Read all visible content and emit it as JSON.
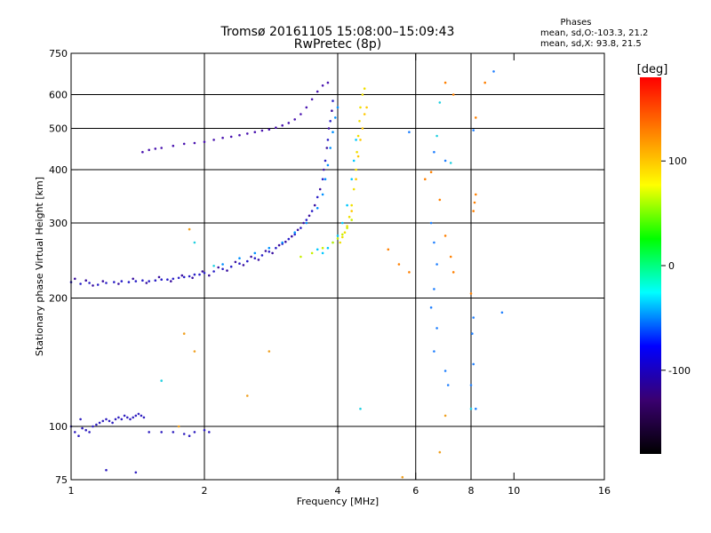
{
  "chart_data": {
    "type": "scatter",
    "title": "Tromsø 20161105 15:08:00–15:09:43",
    "subtitle": "RwPretec (8p)",
    "xlabel": "Frequency [MHz]",
    "ylabel": "Stationary phase Virtual Height [km]",
    "x_scale": "log",
    "y_scale": "log",
    "xlim": [
      1,
      16
    ],
    "ylim": [
      75,
      750
    ],
    "x_ticks": [
      1,
      2,
      4,
      6,
      8,
      10,
      16
    ],
    "y_ticks": [
      75,
      100,
      200,
      300,
      400,
      500,
      600,
      750
    ],
    "x_gridlines": [
      2,
      4,
      6,
      8
    ],
    "y_gridlines": [
      100,
      200,
      300,
      400,
      500,
      600
    ],
    "grid": true,
    "legend": {
      "heading": "Phases",
      "lines": [
        "mean, sd,O:-103.3, 21.2",
        "mean, sd,X:  93.8, 21.5"
      ]
    },
    "colorbar": {
      "label": "[deg]",
      "range": [
        -180,
        180
      ],
      "ticks": [
        100,
        0,
        -100
      ],
      "colors": [
        "#000000",
        "#3a0070",
        "#0000ff",
        "#00ffff",
        "#00ff00",
        "#ffff00",
        "#ff8000",
        "#ff0000"
      ]
    },
    "series": [
      {
        "color": "#2a20c8",
        "points": [
          [
            1.0,
            218
          ],
          [
            1.05,
            216
          ],
          [
            1.1,
            217
          ],
          [
            1.15,
            215
          ],
          [
            1.2,
            217
          ],
          [
            1.25,
            218
          ],
          [
            1.3,
            219
          ],
          [
            1.35,
            218
          ],
          [
            1.4,
            219
          ],
          [
            1.45,
            220
          ],
          [
            1.5,
            219
          ],
          [
            1.55,
            220
          ],
          [
            1.6,
            221
          ],
          [
            1.65,
            221
          ],
          [
            1.7,
            222
          ],
          [
            1.75,
            223
          ],
          [
            1.8,
            224
          ],
          [
            1.85,
            225
          ],
          [
            1.9,
            227
          ],
          [
            1.95,
            227
          ],
          [
            2.0,
            229
          ],
          [
            2.1,
            231
          ],
          [
            2.2,
            234
          ],
          [
            2.3,
            237
          ],
          [
            2.4,
            241
          ],
          [
            2.5,
            244
          ],
          [
            2.6,
            248
          ],
          [
            2.7,
            252
          ],
          [
            2.8,
            257
          ],
          [
            2.9,
            262
          ],
          [
            3.0,
            268
          ],
          [
            3.1,
            275
          ],
          [
            3.2,
            282
          ],
          [
            3.3,
            292
          ],
          [
            3.4,
            305
          ],
          [
            3.5,
            320
          ],
          [
            3.6,
            345
          ],
          [
            3.7,
            380
          ],
          [
            3.75,
            420
          ],
          [
            3.8,
            470
          ],
          [
            3.85,
            520
          ],
          [
            3.9,
            580
          ]
        ]
      },
      {
        "color": "#3a10a0",
        "points": [
          [
            1.02,
            222
          ],
          [
            1.08,
            220
          ],
          [
            1.12,
            214
          ],
          [
            1.18,
            219
          ],
          [
            1.28,
            216
          ],
          [
            1.38,
            222
          ],
          [
            1.48,
            217
          ],
          [
            1.58,
            224
          ],
          [
            1.68,
            219
          ],
          [
            1.78,
            226
          ],
          [
            1.88,
            223
          ],
          [
            1.98,
            231
          ],
          [
            2.05,
            226
          ],
          [
            2.15,
            236
          ],
          [
            2.25,
            232
          ],
          [
            2.35,
            243
          ],
          [
            2.45,
            239
          ],
          [
            2.55,
            250
          ],
          [
            2.65,
            246
          ],
          [
            2.75,
            258
          ],
          [
            2.85,
            255
          ],
          [
            2.95,
            266
          ],
          [
            3.05,
            271
          ],
          [
            3.15,
            279
          ],
          [
            3.25,
            289
          ],
          [
            3.35,
            300
          ],
          [
            3.45,
            312
          ],
          [
            3.55,
            330
          ],
          [
            3.65,
            360
          ],
          [
            3.72,
            400
          ],
          [
            3.78,
            450
          ],
          [
            3.82,
            500
          ],
          [
            3.88,
            550
          ]
        ]
      },
      {
        "color": "#4a14b0",
        "points": [
          [
            1.45,
            440
          ],
          [
            1.5,
            445
          ],
          [
            1.55,
            448
          ],
          [
            1.6,
            450
          ],
          [
            1.7,
            455
          ],
          [
            1.8,
            460
          ],
          [
            1.9,
            462
          ],
          [
            2.0,
            465
          ],
          [
            2.1,
            470
          ],
          [
            2.2,
            475
          ],
          [
            2.3,
            478
          ],
          [
            2.4,
            482
          ],
          [
            2.5,
            486
          ],
          [
            2.6,
            490
          ],
          [
            2.7,
            494
          ],
          [
            2.8,
            497
          ],
          [
            2.9,
            502
          ],
          [
            3.0,
            508
          ],
          [
            3.1,
            515
          ],
          [
            3.2,
            525
          ],
          [
            3.3,
            540
          ],
          [
            3.4,
            560
          ],
          [
            3.5,
            585
          ],
          [
            3.6,
            610
          ],
          [
            3.7,
            630
          ],
          [
            3.8,
            640
          ]
        ]
      },
      {
        "color": "#0090ff",
        "points": [
          [
            2.2,
            240
          ],
          [
            2.4,
            248
          ],
          [
            2.6,
            255
          ],
          [
            2.8,
            262
          ],
          [
            3.0,
            270
          ],
          [
            3.2,
            285
          ],
          [
            3.4,
            300
          ],
          [
            3.6,
            325
          ],
          [
            3.7,
            350
          ],
          [
            3.75,
            380
          ],
          [
            3.8,
            410
          ],
          [
            3.85,
            450
          ],
          [
            3.9,
            490
          ],
          [
            3.95,
            530
          ],
          [
            4.0,
            560
          ]
        ]
      },
      {
        "color": "#00c8ff",
        "points": [
          [
            3.6,
            260
          ],
          [
            3.7,
            255
          ],
          [
            3.8,
            262
          ],
          [
            3.9,
            270
          ],
          [
            4.0,
            280
          ],
          [
            4.1,
            300
          ],
          [
            4.2,
            330
          ],
          [
            4.3,
            380
          ],
          [
            4.35,
            420
          ],
          [
            4.4,
            470
          ]
        ]
      },
      {
        "color": "#c8f000",
        "points": [
          [
            3.3,
            250
          ],
          [
            3.5,
            255
          ],
          [
            3.7,
            262
          ],
          [
            3.9,
            270
          ],
          [
            4.0,
            276
          ],
          [
            4.1,
            282
          ],
          [
            4.2,
            292
          ],
          [
            4.3,
            305
          ]
        ]
      },
      {
        "color": "#f0e000",
        "points": [
          [
            4.05,
            270
          ],
          [
            4.1,
            278
          ],
          [
            4.15,
            285
          ],
          [
            4.2,
            295
          ],
          [
            4.25,
            310
          ],
          [
            4.3,
            330
          ],
          [
            4.35,
            360
          ],
          [
            4.4,
            400
          ],
          [
            4.42,
            440
          ],
          [
            4.45,
            480
          ],
          [
            4.48,
            520
          ],
          [
            4.5,
            560
          ],
          [
            4.55,
            600
          ],
          [
            4.6,
            620
          ]
        ]
      },
      {
        "color": "#ffc800",
        "points": [
          [
            4.3,
            320
          ],
          [
            4.4,
            380
          ],
          [
            4.45,
            430
          ],
          [
            4.5,
            470
          ],
          [
            4.55,
            500
          ],
          [
            4.6,
            540
          ],
          [
            4.65,
            560
          ]
        ]
      },
      {
        "color": "#ff8000",
        "points": [
          [
            5.2,
            260
          ],
          [
            5.5,
            240
          ],
          [
            5.8,
            230
          ],
          [
            6.3,
            380
          ],
          [
            6.5,
            395
          ],
          [
            6.8,
            340
          ],
          [
            7.0,
            280
          ],
          [
            7.2,
            250
          ],
          [
            7.3,
            230
          ],
          [
            8.1,
            320
          ],
          [
            8.15,
            335
          ],
          [
            8.2,
            350
          ],
          [
            8.0,
            205
          ],
          [
            7.0,
            640
          ],
          [
            7.3,
            600
          ],
          [
            8.2,
            530
          ],
          [
            8.6,
            640
          ]
        ]
      },
      {
        "color": "#2080ff",
        "points": [
          [
            6.5,
            300
          ],
          [
            6.6,
            270
          ],
          [
            6.7,
            240
          ],
          [
            6.6,
            210
          ],
          [
            6.5,
            190
          ],
          [
            6.7,
            170
          ],
          [
            6.6,
            150
          ],
          [
            7.0,
            135
          ],
          [
            7.1,
            125
          ],
          [
            8.1,
            180
          ],
          [
            8.05,
            165
          ],
          [
            8.1,
            140
          ],
          [
            8.0,
            125
          ],
          [
            8.2,
            110
          ],
          [
            9.4,
            185
          ],
          [
            5.8,
            490
          ],
          [
            6.6,
            440
          ],
          [
            7.0,
            420
          ],
          [
            8.1,
            495
          ],
          [
            9.0,
            680
          ]
        ]
      },
      {
        "color": "#3020c0",
        "points": [
          [
            1.0,
            100
          ],
          [
            1.02,
            97
          ],
          [
            1.04,
            95
          ],
          [
            1.06,
            99
          ],
          [
            1.08,
            98
          ],
          [
            1.1,
            97
          ],
          [
            1.12,
            100
          ],
          [
            1.14,
            101
          ],
          [
            1.16,
            102
          ],
          [
            1.18,
            103
          ],
          [
            1.2,
            104
          ],
          [
            1.22,
            103
          ],
          [
            1.24,
            102
          ],
          [
            1.26,
            104
          ],
          [
            1.28,
            105
          ],
          [
            1.3,
            104
          ],
          [
            1.32,
            106
          ],
          [
            1.34,
            105
          ],
          [
            1.36,
            104
          ],
          [
            1.38,
            105
          ],
          [
            1.4,
            106
          ],
          [
            1.42,
            107
          ],
          [
            1.44,
            106
          ],
          [
            1.46,
            105
          ],
          [
            1.5,
            97
          ],
          [
            1.6,
            97
          ],
          [
            1.7,
            97
          ],
          [
            1.8,
            96
          ],
          [
            1.85,
            95
          ],
          [
            1.9,
            97
          ],
          [
            2.0,
            98
          ],
          [
            2.05,
            97
          ],
          [
            1.2,
            79
          ],
          [
            1.4,
            78
          ],
          [
            1.05,
            104
          ]
        ]
      },
      {
        "color": "#f0a020",
        "points": [
          [
            2.8,
            150
          ],
          [
            2.5,
            118
          ],
          [
            1.75,
            100
          ],
          [
            1.8,
            165
          ],
          [
            1.9,
            150
          ],
          [
            1.85,
            290
          ],
          [
            6.8,
            87
          ],
          [
            7.0,
            106
          ],
          [
            5.6,
            76
          ]
        ]
      },
      {
        "color": "#20d0e0",
        "points": [
          [
            1.6,
            128
          ],
          [
            1.9,
            270
          ],
          [
            2.1,
            238
          ],
          [
            4.5,
            110
          ],
          [
            6.8,
            575
          ],
          [
            8.0,
            110
          ],
          [
            6.7,
            480
          ],
          [
            7.2,
            415
          ]
        ]
      }
    ]
  }
}
